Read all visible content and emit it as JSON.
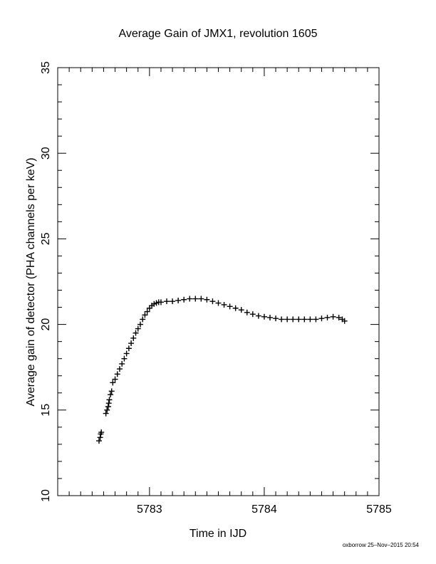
{
  "chart_data": {
    "type": "scatter",
    "title": "Average Gain of JMX1, revolution 1605",
    "xlabel": "Time in IJD",
    "ylabel": "Average gain of detector (PHA channels per keV)",
    "xlim": [
      5782.2,
      5785
    ],
    "ylim": [
      10,
      35
    ],
    "x_major_ticks": [
      5783,
      5784,
      5785
    ],
    "x_minor_step": 0.1,
    "y_major_ticks": [
      10,
      15,
      20,
      25,
      30,
      35
    ],
    "y_minor_step": 1,
    "grid": false,
    "marker": "plus",
    "marker_color": "#000000",
    "series": [
      {
        "points": [
          [
            5782.56,
            13.2
          ],
          [
            5782.57,
            13.4
          ],
          [
            5782.575,
            13.6
          ],
          [
            5782.58,
            13.7
          ],
          [
            5782.62,
            14.8
          ],
          [
            5782.63,
            15.0
          ],
          [
            5782.64,
            15.2
          ],
          [
            5782.645,
            15.4
          ],
          [
            5782.65,
            15.6
          ],
          [
            5782.66,
            15.9
          ],
          [
            5782.67,
            16.1
          ],
          [
            5782.68,
            16.6
          ],
          [
            5782.7,
            16.8
          ],
          [
            5782.72,
            17.1
          ],
          [
            5782.74,
            17.4
          ],
          [
            5782.76,
            17.7
          ],
          [
            5782.78,
            18.0
          ],
          [
            5782.8,
            18.3
          ],
          [
            5782.82,
            18.6
          ],
          [
            5782.84,
            18.9
          ],
          [
            5782.86,
            19.2
          ],
          [
            5782.88,
            19.5
          ],
          [
            5782.9,
            19.75
          ],
          [
            5782.92,
            20.0
          ],
          [
            5782.94,
            20.3
          ],
          [
            5782.96,
            20.55
          ],
          [
            5782.98,
            20.75
          ],
          [
            5783.0,
            20.95
          ],
          [
            5783.02,
            21.1
          ],
          [
            5783.04,
            21.2
          ],
          [
            5783.06,
            21.25
          ],
          [
            5783.08,
            21.3
          ],
          [
            5783.1,
            21.3
          ],
          [
            5783.15,
            21.35
          ],
          [
            5783.2,
            21.35
          ],
          [
            5783.25,
            21.4
          ],
          [
            5783.3,
            21.45
          ],
          [
            5783.35,
            21.5
          ],
          [
            5783.4,
            21.5
          ],
          [
            5783.45,
            21.5
          ],
          [
            5783.5,
            21.45
          ],
          [
            5783.55,
            21.35
          ],
          [
            5783.6,
            21.25
          ],
          [
            5783.65,
            21.15
          ],
          [
            5783.7,
            21.05
          ],
          [
            5783.75,
            20.95
          ],
          [
            5783.8,
            20.85
          ],
          [
            5783.85,
            20.7
          ],
          [
            5783.9,
            20.6
          ],
          [
            5783.95,
            20.5
          ],
          [
            5784.0,
            20.45
          ],
          [
            5784.05,
            20.4
          ],
          [
            5784.1,
            20.35
          ],
          [
            5784.15,
            20.3
          ],
          [
            5784.2,
            20.3
          ],
          [
            5784.25,
            20.3
          ],
          [
            5784.3,
            20.3
          ],
          [
            5784.35,
            20.3
          ],
          [
            5784.4,
            20.3
          ],
          [
            5784.45,
            20.3
          ],
          [
            5784.5,
            20.35
          ],
          [
            5784.55,
            20.4
          ],
          [
            5784.6,
            20.45
          ],
          [
            5784.65,
            20.4
          ],
          [
            5784.68,
            20.3
          ],
          [
            5784.7,
            20.2
          ]
        ]
      }
    ],
    "footer": "oxborrow 25–Nov–2015 20:54"
  }
}
